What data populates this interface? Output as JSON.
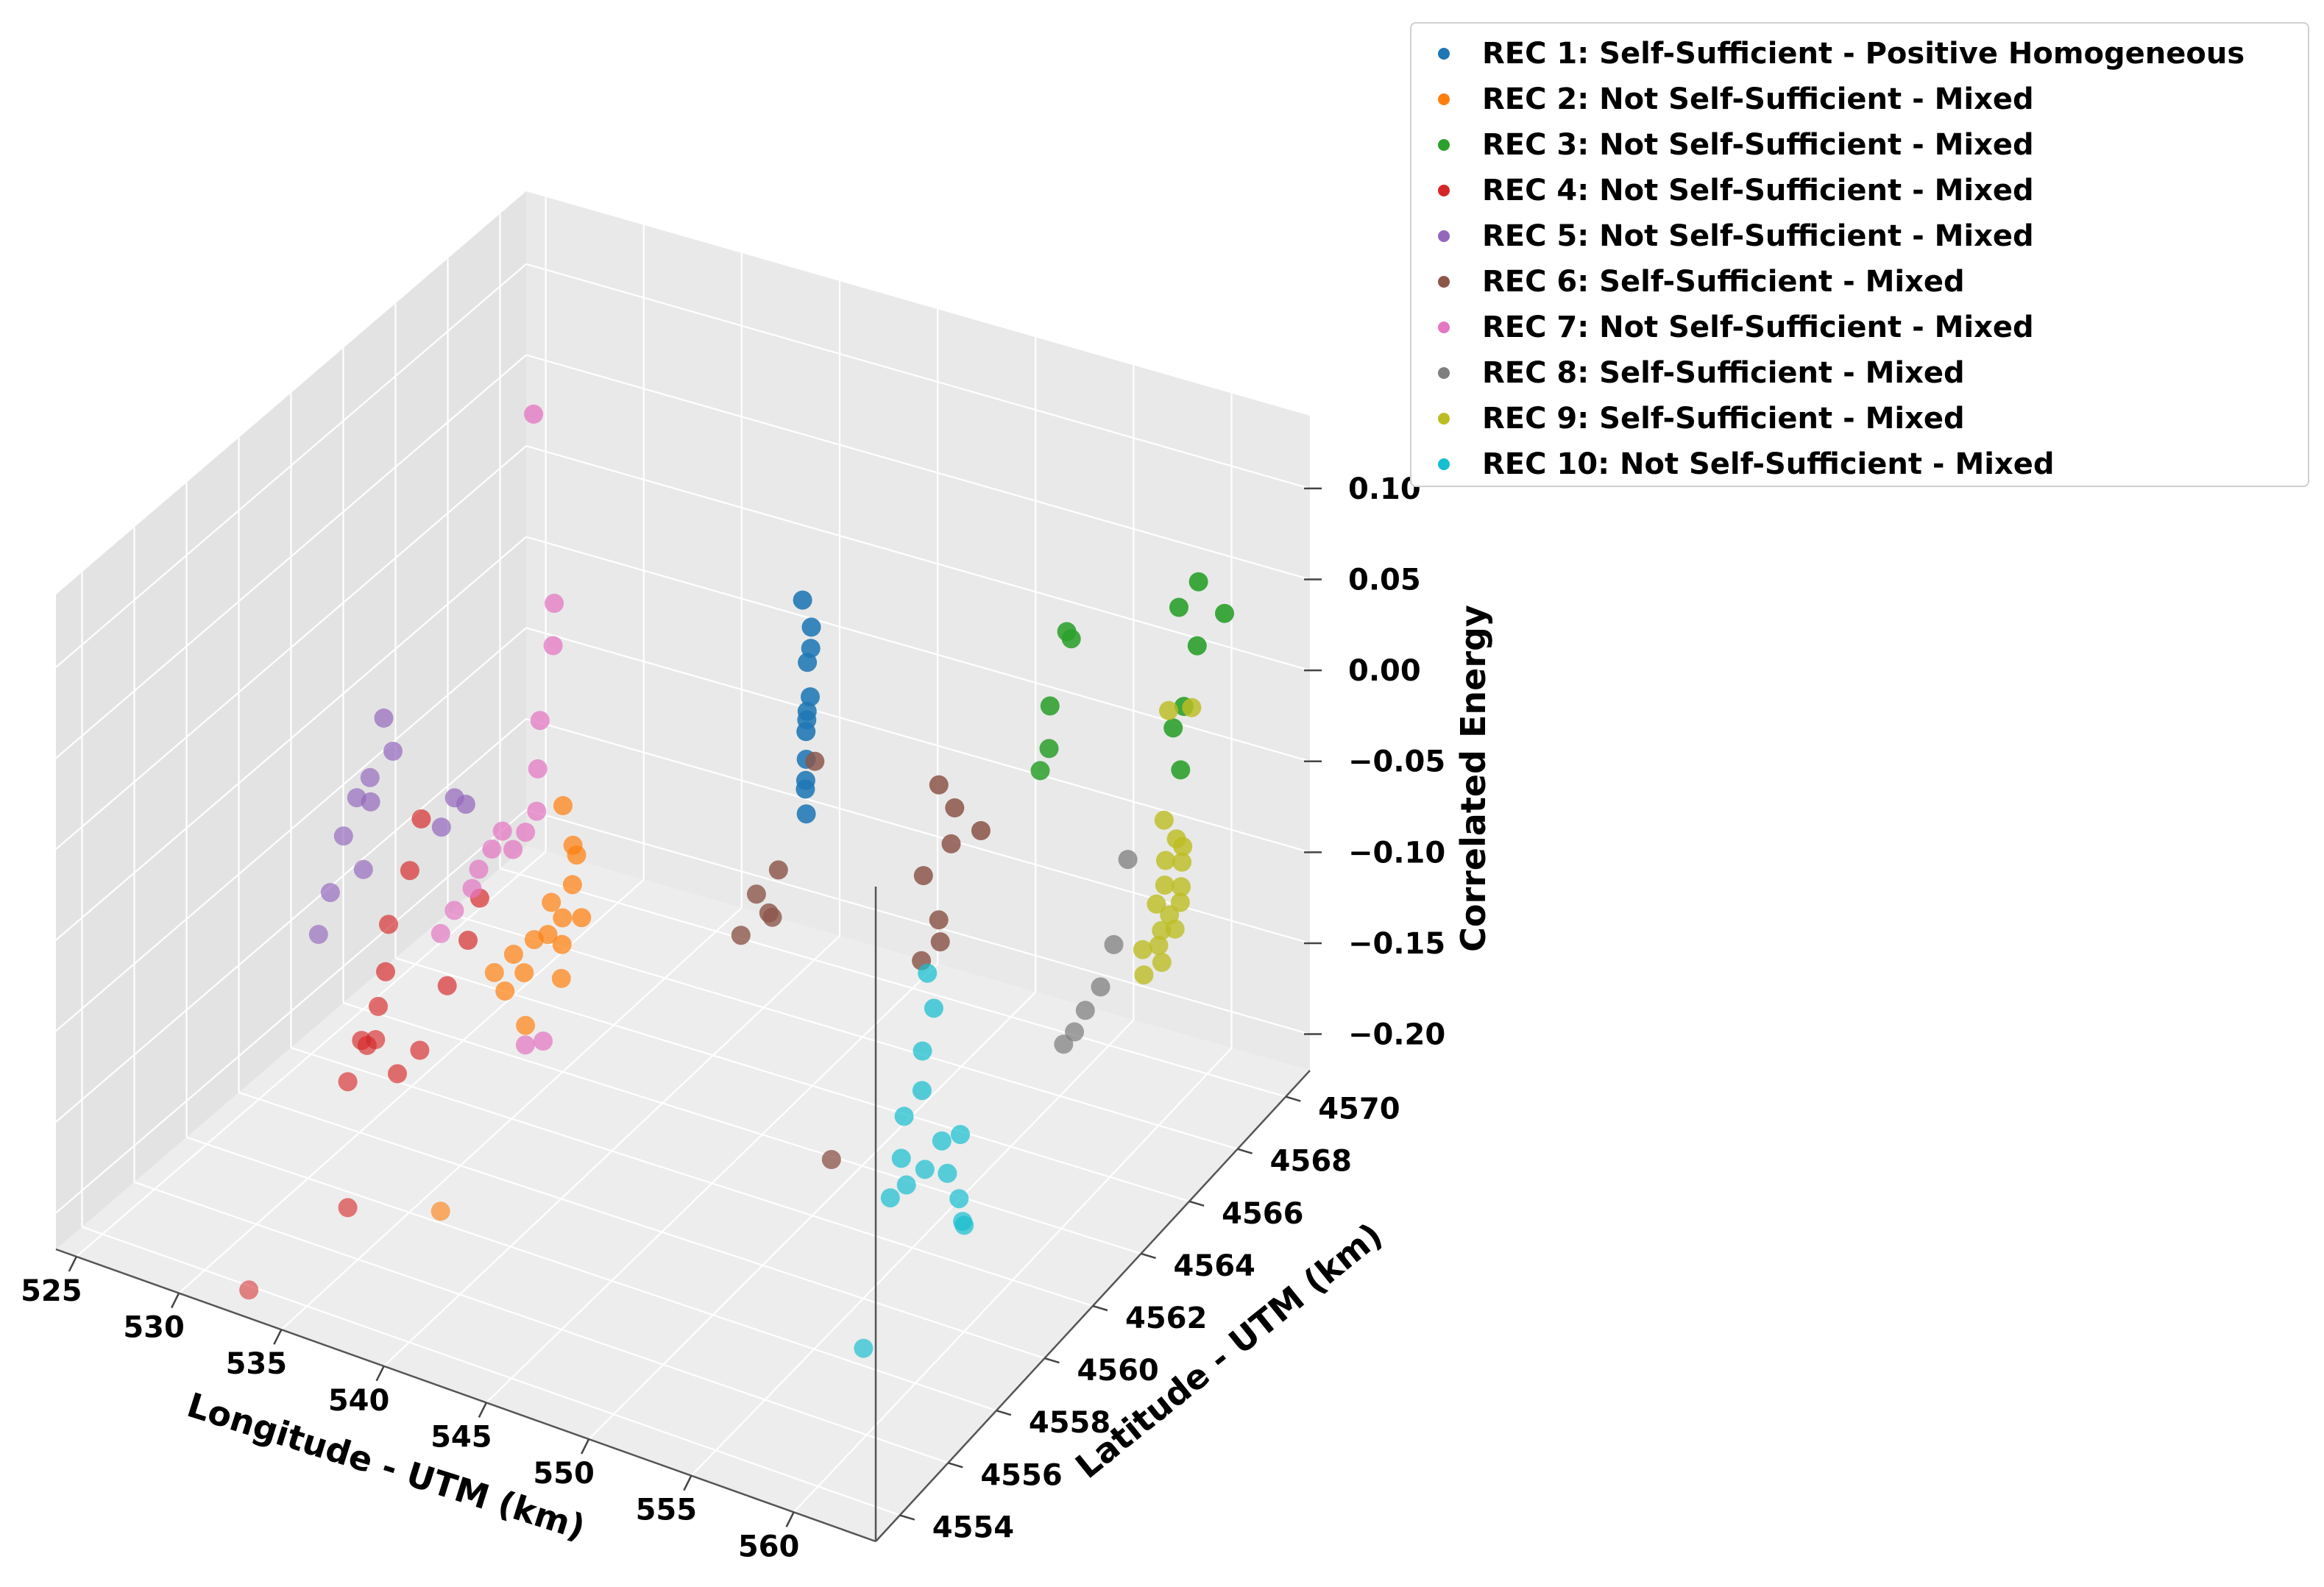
{
  "chart_data": {
    "type": "scatter3d",
    "title": "",
    "xlabel": "Longitude - UTM (km)",
    "ylabel": "Latitude - UTM (km)",
    "zlabel": "Correlated Energy",
    "xlim": [
      524,
      564
    ],
    "ylim": [
      4553,
      4571
    ],
    "zlim": [
      -0.22,
      0.14
    ],
    "x_ticks": [
      "525",
      "530",
      "535",
      "540",
      "545",
      "550",
      "555",
      "560"
    ],
    "y_ticks": [
      "4554",
      "4556",
      "4558",
      "4560",
      "4562",
      "4564",
      "4566",
      "4568",
      "4570"
    ],
    "z_ticks": [
      "−0.20",
      "−0.15",
      "−0.10",
      "−0.05",
      "0.00",
      "0.05",
      "0.10"
    ],
    "grid": true,
    "legend_position": "outside-top-right",
    "series": [
      {
        "name": "REC 1: Self-Sufficient - Positive Homogeneous",
        "color": "#1f77b4",
        "points": [
          [
            541.2,
            4568.6,
            0.0
          ],
          [
            541.9,
            4568.4,
            -0.01
          ],
          [
            542.0,
            4568.3,
            -0.02
          ],
          [
            541.7,
            4568.4,
            -0.03
          ],
          [
            542.1,
            4568.2,
            -0.045
          ],
          [
            541.8,
            4568.3,
            -0.06
          ],
          [
            541.5,
            4568.5,
            -0.07
          ],
          [
            541.9,
            4568.2,
            -0.08
          ],
          [
            542.0,
            4568.1,
            -0.09
          ],
          [
            541.6,
            4568.4,
            -0.1
          ],
          [
            541.9,
            4568.2,
            -0.11
          ],
          [
            542.2,
            4568.0,
            -0.05
          ]
        ]
      },
      {
        "name": "REC 2: Not Self-Sufficient - Mixed",
        "color": "#ff7f0e",
        "points": [
          [
            538.2,
            4561.5,
            -0.03
          ],
          [
            538.5,
            4561.8,
            -0.06
          ],
          [
            538.8,
            4561.4,
            -0.07
          ],
          [
            538.0,
            4561.2,
            -0.08
          ],
          [
            539.0,
            4561.6,
            -0.09
          ],
          [
            537.7,
            4561.3,
            -0.1
          ],
          [
            537.9,
            4561.7,
            -0.11
          ],
          [
            538.5,
            4561.2,
            -0.12
          ],
          [
            537.4,
            4561.0,
            -0.1
          ],
          [
            536.9,
            4561.0,
            -0.12
          ],
          [
            536.5,
            4560.9,
            -0.11
          ],
          [
            536.2,
            4560.8,
            -0.13
          ],
          [
            535.8,
            4560.7,
            -0.12
          ],
          [
            538.7,
            4561.5,
            -0.05
          ],
          [
            538.3,
            4561.4,
            -0.09
          ],
          [
            537.6,
            4560.5,
            -0.14
          ],
          [
            536.8,
            4557.8,
            -0.21
          ]
        ]
      },
      {
        "name": "REC 3: Not Self-Sufficient - Mixed",
        "color": "#2ca02c",
        "points": [
          [
            555.6,
            4567.8,
            0.04
          ],
          [
            555.7,
            4567.9,
            0.035
          ],
          [
            555.0,
            4567.6,
            0.0
          ],
          [
            555.2,
            4567.4,
            -0.02
          ],
          [
            555.0,
            4567.2,
            -0.03
          ],
          [
            559.8,
            4569.0,
            0.05
          ],
          [
            560.3,
            4569.4,
            0.06
          ],
          [
            561.5,
            4569.5,
            0.045
          ],
          [
            560.6,
            4569.1,
            0.03
          ],
          [
            560.3,
            4568.8,
            0.0
          ],
          [
            560.0,
            4568.6,
            -0.01
          ],
          [
            560.5,
            4568.5,
            -0.03
          ]
        ]
      },
      {
        "name": "REC 4: Not Self-Sufficient - Mixed",
        "color": "#d62728",
        "points": [
          [
            532.8,
            4560.2,
            -0.04
          ],
          [
            533.0,
            4559.6,
            -0.06
          ],
          [
            532.2,
            4559.4,
            -0.09
          ],
          [
            531.8,
            4559.6,
            -0.12
          ],
          [
            532.2,
            4559.0,
            -0.13
          ],
          [
            531.5,
            4558.9,
            -0.15
          ],
          [
            531.2,
            4558.6,
            -0.17
          ],
          [
            531.9,
            4558.8,
            -0.15
          ],
          [
            532.7,
            4558.5,
            -0.14
          ],
          [
            533.4,
            4558.8,
            -0.16
          ],
          [
            534.0,
            4559.2,
            -0.15
          ],
          [
            534.6,
            4559.8,
            -0.12
          ],
          [
            535.0,
            4560.3,
            -0.1
          ],
          [
            535.2,
            4560.6,
            -0.08
          ],
          [
            532.6,
            4557.5,
            -0.22
          ],
          [
            530.9,
            4555.0,
            -0.24
          ]
        ]
      },
      {
        "name": "REC 5: Not Self-Sufficient - Mixed",
        "color": "#9467bd",
        "points": [
          [
            530.3,
            4560.7,
            0.0
          ],
          [
            530.5,
            4560.9,
            -0.02
          ],
          [
            530.0,
            4560.4,
            -0.03
          ],
          [
            529.6,
            4560.2,
            -0.04
          ],
          [
            529.9,
            4560.5,
            -0.045
          ],
          [
            529.2,
            4560.0,
            -0.06
          ],
          [
            529.8,
            4560.3,
            -0.08
          ],
          [
            528.8,
            4559.8,
            -0.09
          ],
          [
            528.6,
            4559.5,
            -0.11
          ],
          [
            532.8,
            4561.5,
            -0.045
          ],
          [
            533.1,
            4561.7,
            -0.05
          ],
          [
            532.4,
            4561.3,
            -0.06
          ]
        ]
      },
      {
        "name": "REC 6: Self-Sufficient - Mixed",
        "color": "#8c564b",
        "points": [
          [
            544.5,
            4566.5,
            -0.05
          ],
          [
            543.8,
            4565.6,
            -0.1
          ],
          [
            543.2,
            4565.2,
            -0.11
          ],
          [
            543.7,
            4565.3,
            -0.12
          ],
          [
            542.8,
            4564.9,
            -0.13
          ],
          [
            544.0,
            4565.2,
            -0.12
          ],
          [
            549.5,
            4567.5,
            -0.06
          ],
          [
            550.3,
            4567.5,
            -0.07
          ],
          [
            550.5,
            4567.2,
            -0.085
          ],
          [
            549.6,
            4566.8,
            -0.1
          ],
          [
            550.5,
            4566.7,
            -0.12
          ],
          [
            550.0,
            4566.4,
            -0.14
          ],
          [
            550.7,
            4566.6,
            -0.13
          ],
          [
            548.6,
            4563.9,
            -0.22
          ],
          [
            551.5,
            4567.6,
            -0.08
          ]
        ]
      },
      {
        "name": "REC 7: Not Self-Sufficient - Mixed",
        "color": "#e377c2",
        "points": [
          [
            533.8,
            4563.8,
            0.14
          ],
          [
            535.6,
            4563.2,
            0.05
          ],
          [
            535.8,
            4563.0,
            0.03
          ],
          [
            535.4,
            4562.8,
            -0.01
          ],
          [
            535.8,
            4562.4,
            -0.03
          ],
          [
            536.0,
            4562.2,
            -0.05
          ],
          [
            535.7,
            4562.0,
            -0.06
          ],
          [
            535.2,
            4561.9,
            -0.07
          ],
          [
            534.8,
            4561.8,
            -0.06
          ],
          [
            534.4,
            4561.7,
            -0.07
          ],
          [
            534.0,
            4561.5,
            -0.08
          ],
          [
            533.8,
            4561.4,
            -0.09
          ],
          [
            533.3,
            4561.1,
            -0.1
          ],
          [
            533.0,
            4560.8,
            -0.11
          ],
          [
            536.2,
            4561.6,
            -0.17
          ],
          [
            536.7,
            4561.9,
            -0.17
          ]
        ]
      },
      {
        "name": "REC 8: Self-Sufficient - Mixed",
        "color": "#7f7f7f",
        "points": [
          [
            563.6,
            4563.2,
            -0.04
          ],
          [
            563.3,
            4562.9,
            -0.06
          ],
          [
            562.9,
            4562.6,
            -0.07
          ],
          [
            562.6,
            4562.4,
            -0.08
          ],
          [
            562.3,
            4562.2,
            -0.085
          ],
          [
            563.7,
            4563.7,
            0.0
          ]
        ]
      },
      {
        "name": "REC 9: Self-Sufficient - Mixed",
        "color": "#bcbd22",
        "points": [
          [
            563.2,
            4565.8,
            0.05
          ],
          [
            564.0,
            4566.1,
            0.05
          ],
          [
            563.7,
            4565.2,
            0.0
          ],
          [
            564.2,
            4565.3,
            -0.01
          ],
          [
            564.4,
            4565.4,
            -0.015
          ],
          [
            563.9,
            4565.1,
            -0.02
          ],
          [
            564.1,
            4564.9,
            -0.03
          ],
          [
            564.6,
            4565.2,
            -0.02
          ],
          [
            564.8,
            4565.0,
            -0.03
          ],
          [
            563.8,
            4564.8,
            -0.04
          ],
          [
            564.3,
            4564.6,
            -0.05
          ],
          [
            564.7,
            4564.6,
            -0.04
          ],
          [
            565.0,
            4564.8,
            -0.035
          ],
          [
            563.6,
            4564.4,
            -0.06
          ],
          [
            564.4,
            4564.4,
            -0.055
          ],
          [
            565.1,
            4564.5,
            -0.045
          ],
          [
            563.9,
            4564.2,
            -0.07
          ],
          [
            564.8,
            4564.2,
            -0.06
          ]
        ]
      },
      {
        "name": "REC 10: Not Self-Sufficient - Mixed",
        "color": "#17becf",
        "points": [
          [
            555.5,
            4562.2,
            -0.07
          ],
          [
            555.7,
            4562.3,
            -0.09
          ],
          [
            555.5,
            4562.0,
            -0.11
          ],
          [
            555.6,
            4561.9,
            -0.13
          ],
          [
            555.2,
            4561.5,
            -0.14
          ],
          [
            555.3,
            4561.3,
            -0.16
          ],
          [
            555.0,
            4561.1,
            -0.18
          ],
          [
            555.8,
            4561.1,
            -0.17
          ],
          [
            556.6,
            4561.2,
            -0.16
          ],
          [
            557.2,
            4561.4,
            -0.145
          ],
          [
            557.6,
            4561.3,
            -0.16
          ],
          [
            558.0,
            4561.5,
            -0.14
          ],
          [
            558.3,
            4561.2,
            -0.17
          ],
          [
            558.6,
            4561.1,
            -0.18
          ],
          [
            558.8,
            4561.0,
            -0.18
          ],
          [
            555.5,
            4559.6,
            -0.24
          ]
        ]
      }
    ]
  }
}
